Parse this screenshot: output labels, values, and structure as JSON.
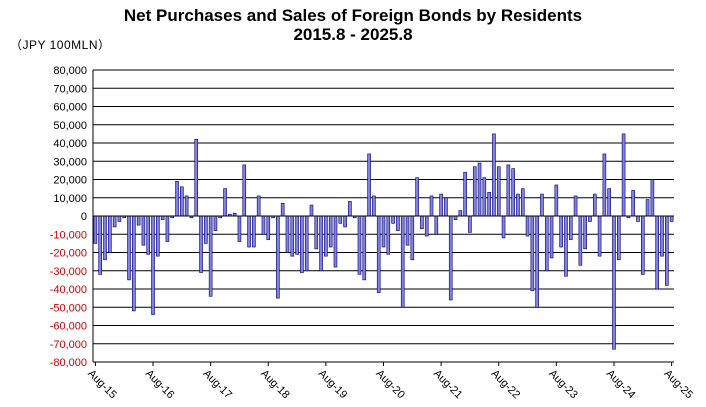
{
  "chart_data": {
    "type": "bar",
    "title": "Net Purchases and Sales of Foreign Bonds by Residents",
    "subtitle": "2015.8 - 2025.8",
    "unit_label": "（JPY 100MLN）",
    "ylim": [
      -80000,
      80000
    ],
    "y_ticks": [
      "80,000",
      "70,000",
      "60,000",
      "50,000",
      "40,000",
      "30,000",
      "20,000",
      "10,000",
      "0",
      "-10,000",
      "-20,000",
      "-30,000",
      "-40,000",
      "-50,000",
      "-60,000",
      "-70,000",
      "-80,000"
    ],
    "y_tick_values": [
      80000,
      70000,
      60000,
      50000,
      40000,
      30000,
      20000,
      10000,
      0,
      -10000,
      -20000,
      -30000,
      -40000,
      -50000,
      -60000,
      -70000,
      -80000
    ],
    "x_tick_labels": [
      "Aug-15",
      "Aug-16",
      "Aug-17",
      "Aug-18",
      "Aug-19",
      "Aug-20",
      "Aug-21",
      "Aug-22",
      "Aug-23",
      "Aug-24",
      "Aug-25"
    ],
    "grid": true,
    "legend": "none",
    "colors": {
      "bar_fill": "#8080e6",
      "bar_stroke": "#000066",
      "grid": "#000000",
      "negative_tick": "#cc0000"
    },
    "series": [
      {
        "values": [
          -15000,
          -32000,
          -24000,
          -20000,
          -6000,
          -3000,
          -1000,
          -35000,
          -52000,
          -5000,
          -16000,
          -21000,
          -54000,
          -22000,
          -2000,
          -14000,
          -1000,
          19000,
          16000,
          11000,
          -1000,
          42000,
          -31000,
          -15000,
          -44000,
          -8000,
          -1000,
          15000,
          1000,
          1500,
          -14000,
          28000,
          -17000,
          -17000,
          11000,
          -10000,
          -13000,
          -1000,
          -45000,
          7000,
          -20000,
          -22000,
          -21000,
          -31000,
          -30000,
          6000,
          -18000,
          -30000,
          -22000,
          -17000,
          -28000,
          -4000,
          -6000,
          8000,
          -1000,
          -32000,
          -35000,
          34000,
          11000,
          -42000,
          -17000,
          -21000,
          -4000,
          -8000,
          -50000,
          -16000,
          -24000,
          21000,
          -7000,
          -11000,
          11000,
          -10000,
          12000,
          10000,
          -46000,
          -2000,
          3000,
          24000,
          -9000,
          27000,
          29000,
          21000,
          13000,
          45000,
          27000,
          -12000,
          28000,
          26000,
          12000,
          15000,
          -11000,
          -41000,
          -50000,
          12000,
          -30000,
          -23000,
          17000,
          -17000,
          -33000,
          -13000,
          11000,
          -27000,
          -18000,
          -3000,
          12000,
          -22000,
          34000,
          15000,
          -73000,
          -24000,
          45000,
          -1000,
          14000,
          -3000,
          -32000,
          9000,
          20000,
          -40000,
          -22000,
          -38000,
          -3000
        ]
      }
    ]
  }
}
